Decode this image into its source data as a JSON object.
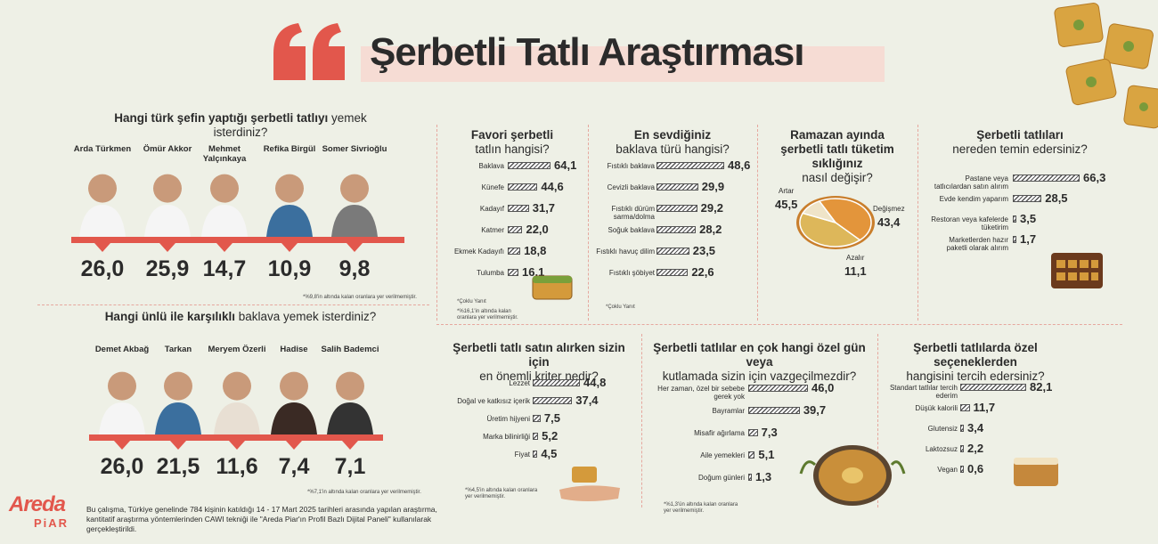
{
  "title": "Şerbetli Tatlı Araştırması",
  "colors": {
    "accent": "#e2574c",
    "background": "#eef0e6",
    "title_highlight": "#f6dcd4"
  },
  "chefs": {
    "question_bold": "Hangi türk şefin yaptığı şerbetli tatlıyı",
    "question_light": " yemek isterdiniz?",
    "items": [
      {
        "name": "Arda Türkmen",
        "value": "26,0"
      },
      {
        "name": "Ömür Akkor",
        "value": "25,9"
      },
      {
        "name": "Mehmet Yalçınkaya",
        "value": "14,7"
      },
      {
        "name": "Refika Birgül",
        "value": "10,9"
      },
      {
        "name": "Somer Sivrioğlu",
        "value": "9,8"
      }
    ],
    "note": "*%9,8'in altında kalan oranlara yer verilmemiştir."
  },
  "celebs": {
    "question_bold": "Hangi ünlü ile karşılıklı",
    "question_light": " baklava yemek isterdiniz?",
    "items": [
      {
        "name": "Demet Akbağ",
        "value": "26,0"
      },
      {
        "name": "Tarkan",
        "value": "21,5"
      },
      {
        "name": "Meryem Özerli",
        "value": "11,6"
      },
      {
        "name": "Hadise",
        "value": "7,4"
      },
      {
        "name": "Salih Bademci",
        "value": "7,1"
      }
    ],
    "note": "*%7,1'in altında kalan oranlara yer verilmemiştir."
  },
  "chart_data": [
    {
      "type": "bar",
      "title": "Favori şerbetli tatlın hangisi?",
      "categories": [
        "Baklava",
        "Künefe",
        "Kadayıf",
        "Katmer",
        "Ekmek Kadayıfı",
        "Tulumba"
      ],
      "values": [
        64.1,
        44.6,
        31.7,
        22.0,
        18.8,
        16.1
      ],
      "labels": [
        "64,1",
        "44,6",
        "31,7",
        "22,0",
        "18,8",
        "16,1"
      ],
      "notes": [
        "*Çoklu Yanıt",
        "*%16,1'in altında kalan oranlara yer verilmemiştir."
      ]
    },
    {
      "type": "bar",
      "title": "En sevdiğiniz baklava türü hangisi?",
      "categories": [
        "Fıstıklı baklava",
        "Cevizli baklava",
        "Fıstıklı dürüm sarma/dolma",
        "Soğuk baklava",
        "Fıstıklı havuç dilim",
        "Fıstıklı şöbiyet"
      ],
      "values": [
        48.6,
        29.9,
        29.2,
        28.2,
        23.5,
        22.6
      ],
      "labels": [
        "48,6",
        "29,9",
        "29,2",
        "28,2",
        "23,5",
        "22,6"
      ],
      "notes": [
        "*Çoklu Yanıt"
      ]
    },
    {
      "type": "pie",
      "title": "Ramazan ayında şerbetli tatlı tüketim sıklığınız nasıl değişir?",
      "categories": [
        "Artar",
        "Değişmez",
        "Azalır"
      ],
      "values": [
        45.5,
        43.4,
        11.1
      ],
      "labels": [
        "45,5",
        "43,4",
        "11,1"
      ]
    },
    {
      "type": "bar",
      "title": "Şerbetli tatlıları nereden temin edersiniz?",
      "categories": [
        "Pastane veya tatlıcılardan satın alırım",
        "Evde kendim yaparım",
        "Restoran veya kafelerde tüketirim",
        "Marketlerden hazır paketli olarak alırım"
      ],
      "values": [
        66.3,
        28.5,
        3.5,
        1.7
      ],
      "labels": [
        "66,3",
        "28,5",
        "3,5",
        "1,7"
      ]
    },
    {
      "type": "bar",
      "title": "Şerbetli tatlı satın alırken sizin için en önemli kriter nedir?",
      "categories": [
        "Lezzet",
        "Doğal ve katkısız içerik",
        "Üretim hijyeni",
        "Marka bilinirliği",
        "Fiyat"
      ],
      "values": [
        44.8,
        37.4,
        7.5,
        5.2,
        4.5
      ],
      "labels": [
        "44,8",
        "37,4",
        "7,5",
        "5,2",
        "4,5"
      ],
      "notes": [
        "*%4,5'in altında kalan oranlara yer verilmemiştir."
      ]
    },
    {
      "type": "bar",
      "title": "Şerbetli tatlılar en çok hangi özel gün veya kutlamada sizin için vazgeçilmezdir?",
      "categories": [
        "Her zaman, özel bir sebebe gerek yok",
        "Bayramlar",
        "Misafir ağırlama",
        "Aile yemekleri",
        "Doğum günleri"
      ],
      "values": [
        46.0,
        39.7,
        7.3,
        5.1,
        1.3
      ],
      "labels": [
        "46,0",
        "39,7",
        "7,3",
        "5,1",
        "1,3"
      ],
      "notes": [
        "*%1,3'ün altında kalan oranlara yer verilmemiştir."
      ]
    },
    {
      "type": "bar",
      "title": "Şerbetli tatlılarda özel seçeneklerden hangisini tercih edersiniz?",
      "categories": [
        "Standart tatlılar tercih ederim",
        "Düşük kalorili",
        "Glutensiz",
        "Laktozsuz",
        "Vegan"
      ],
      "values": [
        82.1,
        11.7,
        3.4,
        2.2,
        0.6
      ],
      "labels": [
        "82,1",
        "11,7",
        "3,4",
        "2,2",
        "0,6"
      ]
    }
  ],
  "panels": {
    "p1": {
      "t1": "Favori şerbetli",
      "t2": "tatlın hangisi?"
    },
    "p2": {
      "t1": "En sevdiğiniz",
      "t2": "baklava türü hangisi?"
    },
    "p3": {
      "t1": "Ramazan ayında",
      "t2": "şerbetli tatlı tüketim sıklığınız",
      "t3": "nasıl değişir?"
    },
    "p4": {
      "t1": "Şerbetli tatlıları",
      "t2": "nereden temin edersiniz?"
    },
    "p5": {
      "t1": "Şerbetli tatlı satın alırken sizin için",
      "t2": "en önemli kriter nedir?"
    },
    "p6": {
      "t1": "Şerbetli tatlılar en çok hangi özel gün veya",
      "t2": "kutlamada sizin için vazgeçilmezdir?"
    },
    "p7": {
      "t1": "Şerbetli tatlılarda özel seçeneklerden",
      "t2": "hangisini tercih edersiniz?"
    }
  },
  "logo": {
    "line1": "Areda",
    "line2": "PiAR"
  },
  "methodology": "Bu çalışma, Türkiye genelinde 784 kişinin katıldığı 14 - 17 Mart 2025 tarihleri arasında yapılan araştırma, kantitatif araştırma yöntemlerinden CAWI tekniği ile \"Areda Piar'ın Profil Bazlı Dijital Paneli\" kullanılarak gerçekleştirildi."
}
